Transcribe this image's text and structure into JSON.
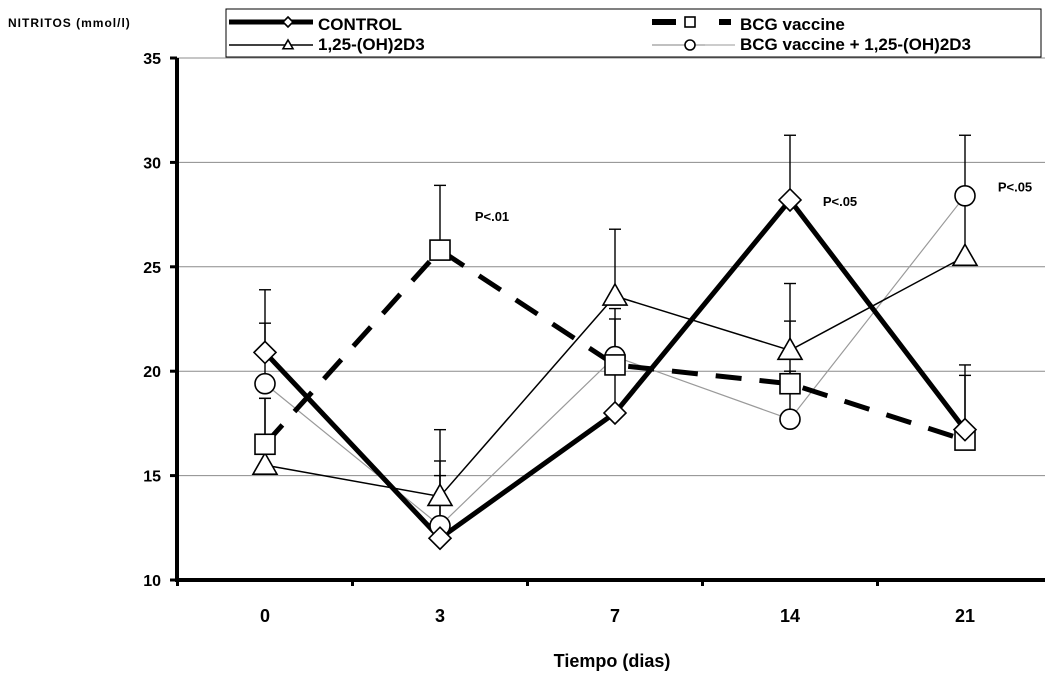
{
  "chart_data": {
    "type": "line",
    "ylabel": "NITRITOS (mmol/l)",
    "xlabel": "Tiempo (dias)",
    "categories": [
      "0",
      "3",
      "7",
      "14",
      "21"
    ],
    "ylim": [
      10,
      35
    ],
    "yticks": [
      10,
      15,
      20,
      25,
      30,
      35
    ],
    "grid": true,
    "legend_position": "top",
    "series": [
      {
        "name": "CONTROL",
        "marker": "diamond",
        "line_style": "solid-thick",
        "color": "#000000",
        "values": [
          20.9,
          12.0,
          18.0,
          28.2,
          17.2
        ],
        "error_high": [
          23.9,
          15.7,
          20.5,
          31.3,
          20.3
        ]
      },
      {
        "name": "BCG vaccine",
        "marker": "square",
        "line_style": "dashed-thick",
        "color": "#000000",
        "values": [
          16.5,
          25.8,
          20.3,
          19.4,
          16.7
        ],
        "error_high": [
          18.7,
          28.9,
          22.5,
          22.4,
          19.8
        ]
      },
      {
        "name": "1,25-(OH)2D3",
        "marker": "triangle",
        "line_style": "solid-thin",
        "color": "#000000",
        "values": [
          15.5,
          14.0,
          23.6,
          21.0,
          25.5
        ],
        "error_high": [
          18.7,
          17.2,
          26.8,
          24.2,
          28.5
        ]
      },
      {
        "name": "BCG vaccine + 1,25-(OH)2D3",
        "marker": "circle",
        "line_style": "solid-light",
        "color": "#9a9a9a",
        "values": [
          19.4,
          12.6,
          20.7,
          17.7,
          28.4
        ],
        "error_high": [
          22.3,
          15.0,
          23.0,
          20.0,
          31.3
        ]
      }
    ],
    "annotations": [
      {
        "text": "P<.01",
        "x": "3",
        "y": 27.2
      },
      {
        "text": "P<.05",
        "x": "14",
        "y": 27.9
      },
      {
        "text": "P<.05",
        "x": "21",
        "y": 28.6
      }
    ]
  }
}
